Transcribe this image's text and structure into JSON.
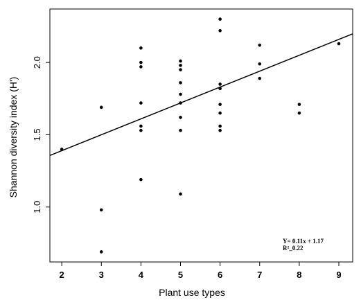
{
  "chart_data": {
    "type": "scatter",
    "xlabel": "Plant use types",
    "ylabel": "Shannon diversity index (H')",
    "xlim": [
      1.7,
      9.35
    ],
    "ylim": [
      0.62,
      2.37
    ],
    "x_ticks": [
      2,
      3,
      4,
      5,
      6,
      7,
      8,
      9
    ],
    "y_ticks": [
      1.0,
      1.5,
      2.0
    ],
    "y_tick_labels": [
      "1.0",
      "1.5",
      "2.0"
    ],
    "grid": false,
    "points": [
      {
        "x": 2,
        "y": 1.4
      },
      {
        "x": 3,
        "y": 1.69
      },
      {
        "x": 3,
        "y": 0.98
      },
      {
        "x": 3,
        "y": 0.69
      },
      {
        "x": 4,
        "y": 2.1
      },
      {
        "x": 4,
        "y": 2.0
      },
      {
        "x": 4,
        "y": 1.97
      },
      {
        "x": 4,
        "y": 1.72
      },
      {
        "x": 4,
        "y": 1.56
      },
      {
        "x": 4,
        "y": 1.53
      },
      {
        "x": 4,
        "y": 1.19
      },
      {
        "x": 5,
        "y": 2.01
      },
      {
        "x": 5,
        "y": 1.98
      },
      {
        "x": 5,
        "y": 1.95
      },
      {
        "x": 5,
        "y": 1.86
      },
      {
        "x": 5,
        "y": 1.78
      },
      {
        "x": 5,
        "y": 1.72
      },
      {
        "x": 5,
        "y": 1.62
      },
      {
        "x": 5,
        "y": 1.53
      },
      {
        "x": 5,
        "y": 1.09
      },
      {
        "x": 6,
        "y": 2.3
      },
      {
        "x": 6,
        "y": 2.22
      },
      {
        "x": 6,
        "y": 1.85
      },
      {
        "x": 6,
        "y": 1.82
      },
      {
        "x": 6,
        "y": 1.71
      },
      {
        "x": 6,
        "y": 1.65
      },
      {
        "x": 6,
        "y": 1.56
      },
      {
        "x": 6,
        "y": 1.53
      },
      {
        "x": 7,
        "y": 2.12
      },
      {
        "x": 7,
        "y": 1.99
      },
      {
        "x": 7,
        "y": 1.89
      },
      {
        "x": 8,
        "y": 1.71
      },
      {
        "x": 8,
        "y": 1.65
      },
      {
        "x": 9,
        "y": 2.13
      }
    ],
    "regression": {
      "slope": 0.11,
      "intercept": 1.17,
      "x_range": [
        1.7,
        9.35
      ]
    },
    "annotations": {
      "equation": "Y= 0.11x + 1.17",
      "r_squared": "R²_0.22"
    }
  }
}
